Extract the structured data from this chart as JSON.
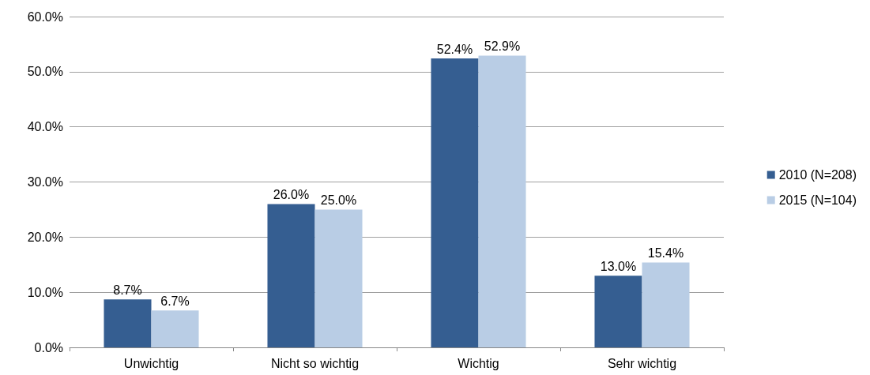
{
  "chart_data": {
    "type": "bar",
    "categories": [
      "Unwichtig",
      "Nicht so wichtig",
      "Wichtig",
      "Sehr wichtig"
    ],
    "series": [
      {
        "name": "2010 (N=208)",
        "color": "#355e91",
        "values": [
          8.7,
          26.0,
          52.4,
          13.0
        ],
        "value_labels": [
          "8.7%",
          "26.0%",
          "52.4%",
          "13.0%"
        ]
      },
      {
        "name": "2015 (N=104)",
        "color": "#b9cde5",
        "values": [
          6.7,
          25.0,
          52.9,
          15.4
        ],
        "value_labels": [
          "6.7%",
          "25.0%",
          "52.9%",
          "15.4%"
        ]
      }
    ],
    "ylim": [
      0,
      60
    ],
    "yticks": [
      {
        "value": 0,
        "label": "0.0%"
      },
      {
        "value": 10,
        "label": "10.0%"
      },
      {
        "value": 20,
        "label": "20.0%"
      },
      {
        "value": 30,
        "label": "30.0%"
      },
      {
        "value": 40,
        "label": "40.0%"
      },
      {
        "value": 50,
        "label": "50.0%"
      },
      {
        "value": 60,
        "label": "60.0%"
      }
    ],
    "grid": "y",
    "legend": "right"
  }
}
